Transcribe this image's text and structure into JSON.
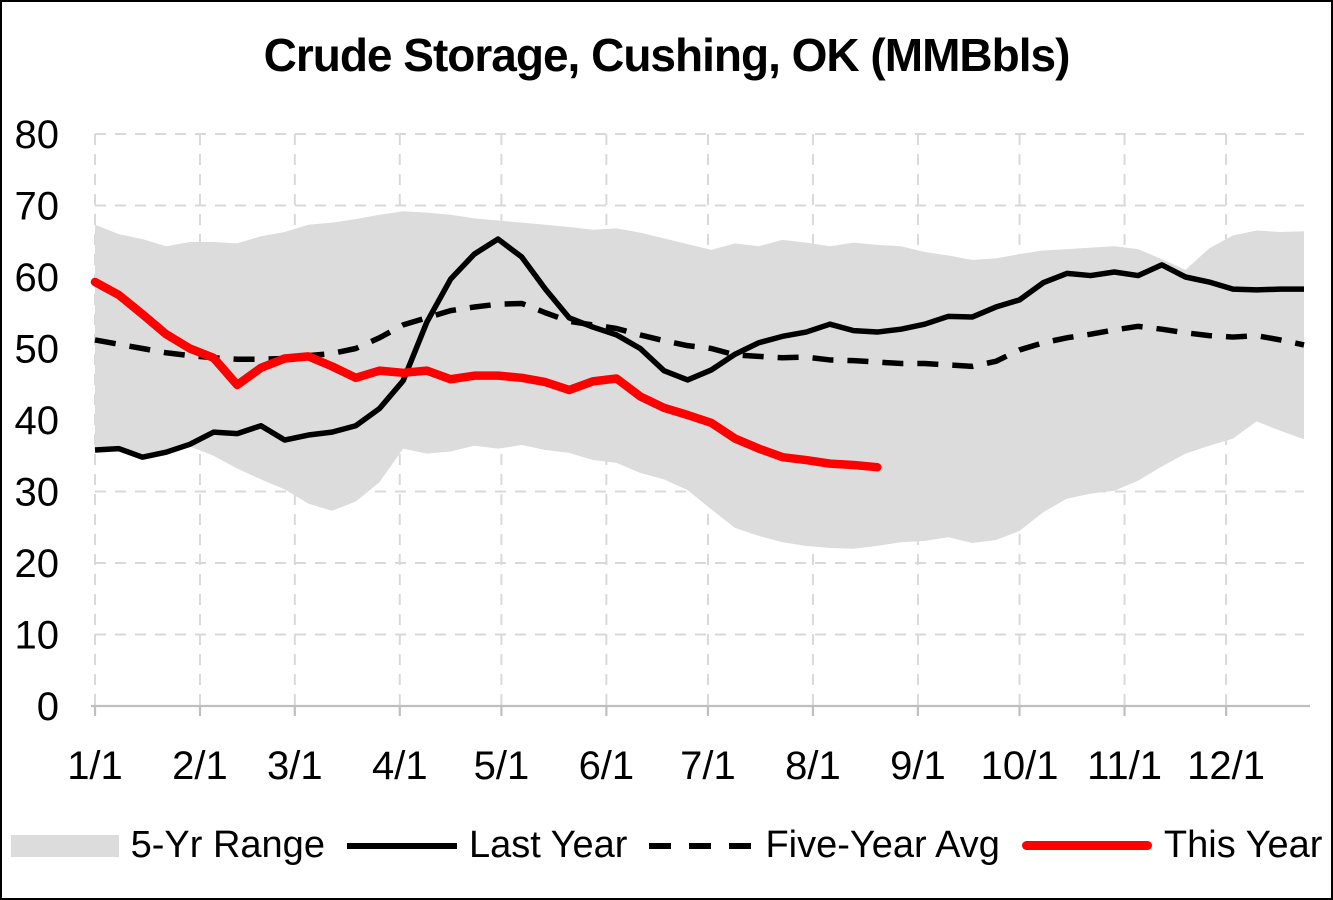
{
  "chart": {
    "title": "Crude Storage, Cushing, OK (MMBbls)",
    "legend": [
      {
        "label": "5-Yr Range",
        "swatch": "band"
      },
      {
        "label": "Last Year",
        "swatch": "solid-line"
      },
      {
        "label": "Five-Year Avg",
        "swatch": "dashed-line"
      },
      {
        "label": "This Year",
        "swatch": "red-line"
      }
    ],
    "colors": {
      "band": "#dcdcdc",
      "last_year": "#000000",
      "five_year_avg": "#000000",
      "this_year": "#ff0000",
      "gridline": "#d9d9d9",
      "axis": "#bfbfbf",
      "text": "#000000"
    }
  },
  "chart_data": {
    "type": "line",
    "title": "Crude Storage, Cushing, OK (MMBbls)",
    "ylabel": "",
    "xlabel": "",
    "ylim": [
      0,
      80
    ],
    "grid": true,
    "legend_position": "bottom",
    "y_ticks": [
      0,
      10,
      20,
      30,
      40,
      50,
      60,
      70,
      80
    ],
    "x_tick_labels": [
      "1/1",
      "2/1",
      "3/1",
      "4/1",
      "5/1",
      "6/1",
      "7/1",
      "8/1",
      "9/1",
      "10/1",
      "11/1",
      "12/1"
    ],
    "x_tick_days": [
      1,
      32,
      60,
      91,
      121,
      152,
      182,
      213,
      244,
      274,
      305,
      335
    ],
    "week_days": [
      1,
      8,
      15,
      22,
      29,
      36,
      43,
      50,
      57,
      64,
      71,
      78,
      85,
      92,
      99,
      106,
      113,
      120,
      127,
      134,
      141,
      148,
      155,
      162,
      169,
      176,
      183,
      190,
      197,
      204,
      211,
      218,
      225,
      232,
      239,
      246,
      253,
      260,
      267,
      274,
      281,
      288,
      295,
      302,
      309,
      316,
      323,
      330,
      337,
      344,
      351,
      358
    ],
    "series": [
      {
        "name": "5-Yr Range (top edge)",
        "style": "band-top",
        "values": [
          67.3,
          66.0,
          65.3,
          64.3,
          64.9,
          64.9,
          64.7,
          65.7,
          66.3,
          67.3,
          67.6,
          68.1,
          68.7,
          69.2,
          69.0,
          68.7,
          68.2,
          67.9,
          67.6,
          67.3,
          67.0,
          66.6,
          66.8,
          66.2,
          65.4,
          64.6,
          63.8,
          64.7,
          64.3,
          65.2,
          64.8,
          64.3,
          64.8,
          64.5,
          64.3,
          63.5,
          63.0,
          62.4,
          62.6,
          63.2,
          63.7,
          63.9,
          64.1,
          64.3,
          63.9,
          62.5,
          61.0,
          64.0,
          65.8,
          66.5,
          66.3,
          66.4
        ]
      },
      {
        "name": "5-Yr Range (bottom edge)",
        "style": "band-bottom",
        "values": [
          35.6,
          35.9,
          34.7,
          35.3,
          36.3,
          35.0,
          33.2,
          31.7,
          30.3,
          28.3,
          27.3,
          28.6,
          31.3,
          36.0,
          35.3,
          35.6,
          36.4,
          36.0,
          36.5,
          35.8,
          35.4,
          34.4,
          34.0,
          32.6,
          31.7,
          30.2,
          27.5,
          24.9,
          23.8,
          22.9,
          22.4,
          22.1,
          22.0,
          22.4,
          22.9,
          23.1,
          23.6,
          22.8,
          23.2,
          24.5,
          27.1,
          29.0,
          29.7,
          30.1,
          31.5,
          33.5,
          35.3,
          36.4,
          37.4,
          39.8,
          38.5,
          37.3
        ]
      },
      {
        "name": "Last Year",
        "style": "solid",
        "values": [
          35.8,
          36.0,
          34.8,
          35.5,
          36.6,
          38.3,
          38.1,
          39.2,
          37.2,
          37.9,
          38.3,
          39.2,
          41.6,
          45.5,
          53.7,
          59.7,
          63.2,
          65.3,
          62.8,
          58.3,
          54.3,
          53.0,
          51.9,
          50.0,
          46.9,
          45.6,
          47.0,
          49.2,
          50.8,
          51.7,
          52.3,
          53.4,
          52.5,
          52.3,
          52.7,
          53.4,
          54.5,
          54.4,
          55.8,
          56.8,
          59.2,
          60.5,
          60.2,
          60.7,
          60.2,
          61.7,
          60.0,
          59.3,
          58.3,
          58.2,
          58.3,
          58.3
        ]
      },
      {
        "name": "Five-Year Avg",
        "style": "dashed",
        "values": [
          51.2,
          50.6,
          50.0,
          49.4,
          49.0,
          48.7,
          48.5,
          48.5,
          48.6,
          49.0,
          49.3,
          50.0,
          51.5,
          53.3,
          54.3,
          55.3,
          55.8,
          56.2,
          56.3,
          55.0,
          53.8,
          53.3,
          52.8,
          51.9,
          51.1,
          50.4,
          50.0,
          49.1,
          48.9,
          48.7,
          48.8,
          48.4,
          48.3,
          48.1,
          47.9,
          47.9,
          47.7,
          47.5,
          48.2,
          49.8,
          50.8,
          51.5,
          52.0,
          52.6,
          53.1,
          52.7,
          52.2,
          51.8,
          51.6,
          51.8,
          51.2,
          50.5
        ]
      },
      {
        "name": "This Year",
        "style": "solid-thick",
        "days": [
          1,
          8,
          15,
          22,
          29,
          36,
          43,
          50,
          57,
          64,
          71,
          78,
          85,
          92,
          99,
          106,
          113,
          120,
          127,
          134,
          141,
          148,
          155,
          162,
          169,
          176,
          183,
          190,
          197,
          204,
          211,
          218,
          225,
          232
        ],
        "values": [
          59.3,
          57.5,
          54.8,
          52.0,
          50.0,
          48.7,
          44.9,
          47.3,
          48.6,
          48.9,
          47.5,
          45.9,
          46.9,
          46.6,
          46.9,
          45.7,
          46.2,
          46.2,
          45.9,
          45.3,
          44.2,
          45.4,
          45.8,
          43.3,
          41.7,
          40.7,
          39.6,
          37.4,
          36.0,
          34.8,
          34.4,
          33.9,
          33.7,
          33.4
        ]
      }
    ]
  }
}
